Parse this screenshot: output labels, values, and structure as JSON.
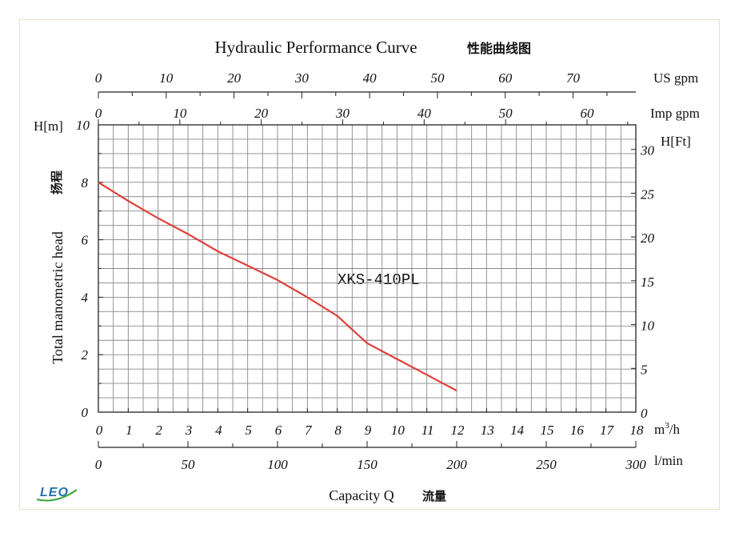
{
  "chart_data": {
    "type": "line",
    "title": "Hydraulic Performance Curve",
    "title_cn": "性能曲线图",
    "model_label": "XKS-410PL",
    "y_unit_left": "H[m]",
    "y_unit_right": "H[Ft]",
    "y_label": "Total manometric head",
    "y_label_cn": "扬程",
    "x_label": "Capacity Q",
    "x_label_cn": "流量",
    "axes": {
      "m3h": {
        "unit": "m³/h",
        "unit_base": "m",
        "unit_sup": "3",
        "unit_tail": "/h",
        "range": [
          0,
          18
        ],
        "ticks": [
          "0",
          "1",
          "2",
          "3",
          "4",
          "5",
          "6",
          "7",
          "8",
          "9",
          "10",
          "11",
          "12",
          "13",
          "14",
          "15",
          "16",
          "17",
          "18"
        ]
      },
      "lmin": {
        "unit": "l/min",
        "range": [
          0,
          300
        ],
        "ticks": [
          "0",
          "50",
          "100",
          "150",
          "200",
          "250",
          "300"
        ]
      },
      "us_gpm": {
        "unit": "US gpm",
        "ticks": [
          "0",
          "10",
          "20",
          "30",
          "40",
          "50",
          "60",
          "70"
        ]
      },
      "imp_gpm": {
        "unit": "Imp gpm",
        "ticks": [
          "0",
          "10",
          "20",
          "30",
          "40",
          "50",
          "60"
        ]
      },
      "h_m": {
        "range": [
          0,
          10
        ],
        "ticks": [
          "0",
          "2",
          "4",
          "6",
          "8",
          "10"
        ]
      },
      "h_ft": {
        "ticks": [
          "0",
          "5",
          "10",
          "15",
          "20",
          "25",
          "30"
        ]
      }
    },
    "series": [
      {
        "name": "XKS-410PL",
        "color": "#e0403a",
        "x_m3h": [
          0,
          1,
          2,
          3,
          4,
          5,
          6,
          7,
          8,
          9,
          10,
          11,
          12
        ],
        "y_m": [
          8.0,
          7.35,
          6.75,
          6.2,
          5.6,
          5.1,
          4.6,
          4.0,
          3.35,
          2.4,
          1.85,
          1.3,
          0.75
        ]
      }
    ],
    "grid": true,
    "colors": {
      "curve": "#e0403a",
      "grid": "#888888",
      "logo": "#1f6fb0"
    }
  },
  "logo": "LEO"
}
